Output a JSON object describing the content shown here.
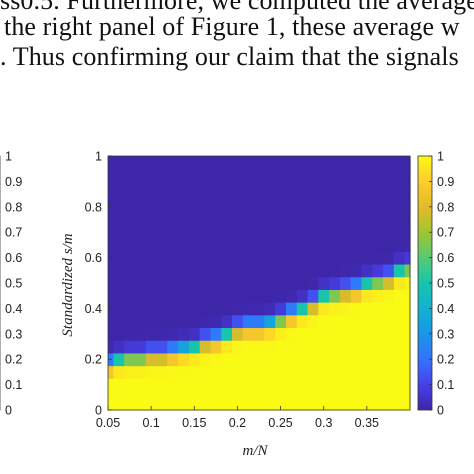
{
  "page_text": {
    "line1": "ss0.5. Furthermore, we computed the average",
    "line2": "the right panel of Figure 1, these average w",
    "line3": ". Thus confirming our claim that the signals"
  },
  "colors": {
    "low": "#3e26a8",
    "high": "#f9fb15",
    "colormap": "parula"
  },
  "left_colorbar_fragment": {
    "ticks": [
      "1",
      "0.9",
      "0.8",
      "0.7",
      "0.6",
      "0.5",
      "0.4",
      "0.3",
      "0.2",
      "0.1",
      "0"
    ]
  },
  "chart_data": {
    "type": "heatmap",
    "title": "",
    "xlabel": "m/N",
    "ylabel": "Standardized s/m",
    "xlim": [
      0.05,
      0.4
    ],
    "ylim": [
      0,
      1
    ],
    "x_ticks": [
      "0.05",
      "0.1",
      "0.15",
      "0.2",
      "0.25",
      "0.3",
      "0.35"
    ],
    "y_ticks": [
      "0",
      "0.2",
      "0.4",
      "0.6",
      "0.8",
      "1"
    ],
    "colorbar": {
      "range": [
        0,
        1
      ],
      "ticks": [
        "1",
        "0.9",
        "0.8",
        "0.7",
        "0.6",
        "0.5",
        "0.4",
        "0.3",
        "0.2",
        "0.1",
        "0"
      ]
    },
    "x_centers": [
      0.05,
      0.0625,
      0.075,
      0.0875,
      0.1,
      0.1125,
      0.125,
      0.1375,
      0.15,
      0.1625,
      0.175,
      0.1875,
      0.2,
      0.2125,
      0.225,
      0.2375,
      0.25,
      0.2625,
      0.275,
      0.2875,
      0.3,
      0.3125,
      0.325,
      0.3375,
      0.35,
      0.3625,
      0.375,
      0.3875,
      0.4
    ],
    "y_centers": [
      0,
      0.05,
      0.1,
      0.15,
      0.2,
      0.25,
      0.3,
      0.35,
      0.4,
      0.45,
      0.5,
      0.55,
      0.6,
      0.65,
      0.7,
      0.75,
      0.8,
      0.85,
      0.9,
      0.95,
      1
    ],
    "transition_boundary": [
      0.18,
      0.2,
      0.21,
      0.21,
      0.22,
      0.22,
      0.23,
      0.24,
      0.25,
      0.27,
      0.28,
      0.3,
      0.32,
      0.33,
      0.33,
      0.34,
      0.36,
      0.38,
      0.4,
      0.42,
      0.45,
      0.46,
      0.47,
      0.48,
      0.5,
      0.51,
      0.52,
      0.55,
      0.56
    ],
    "transition_width": 0.07
  }
}
